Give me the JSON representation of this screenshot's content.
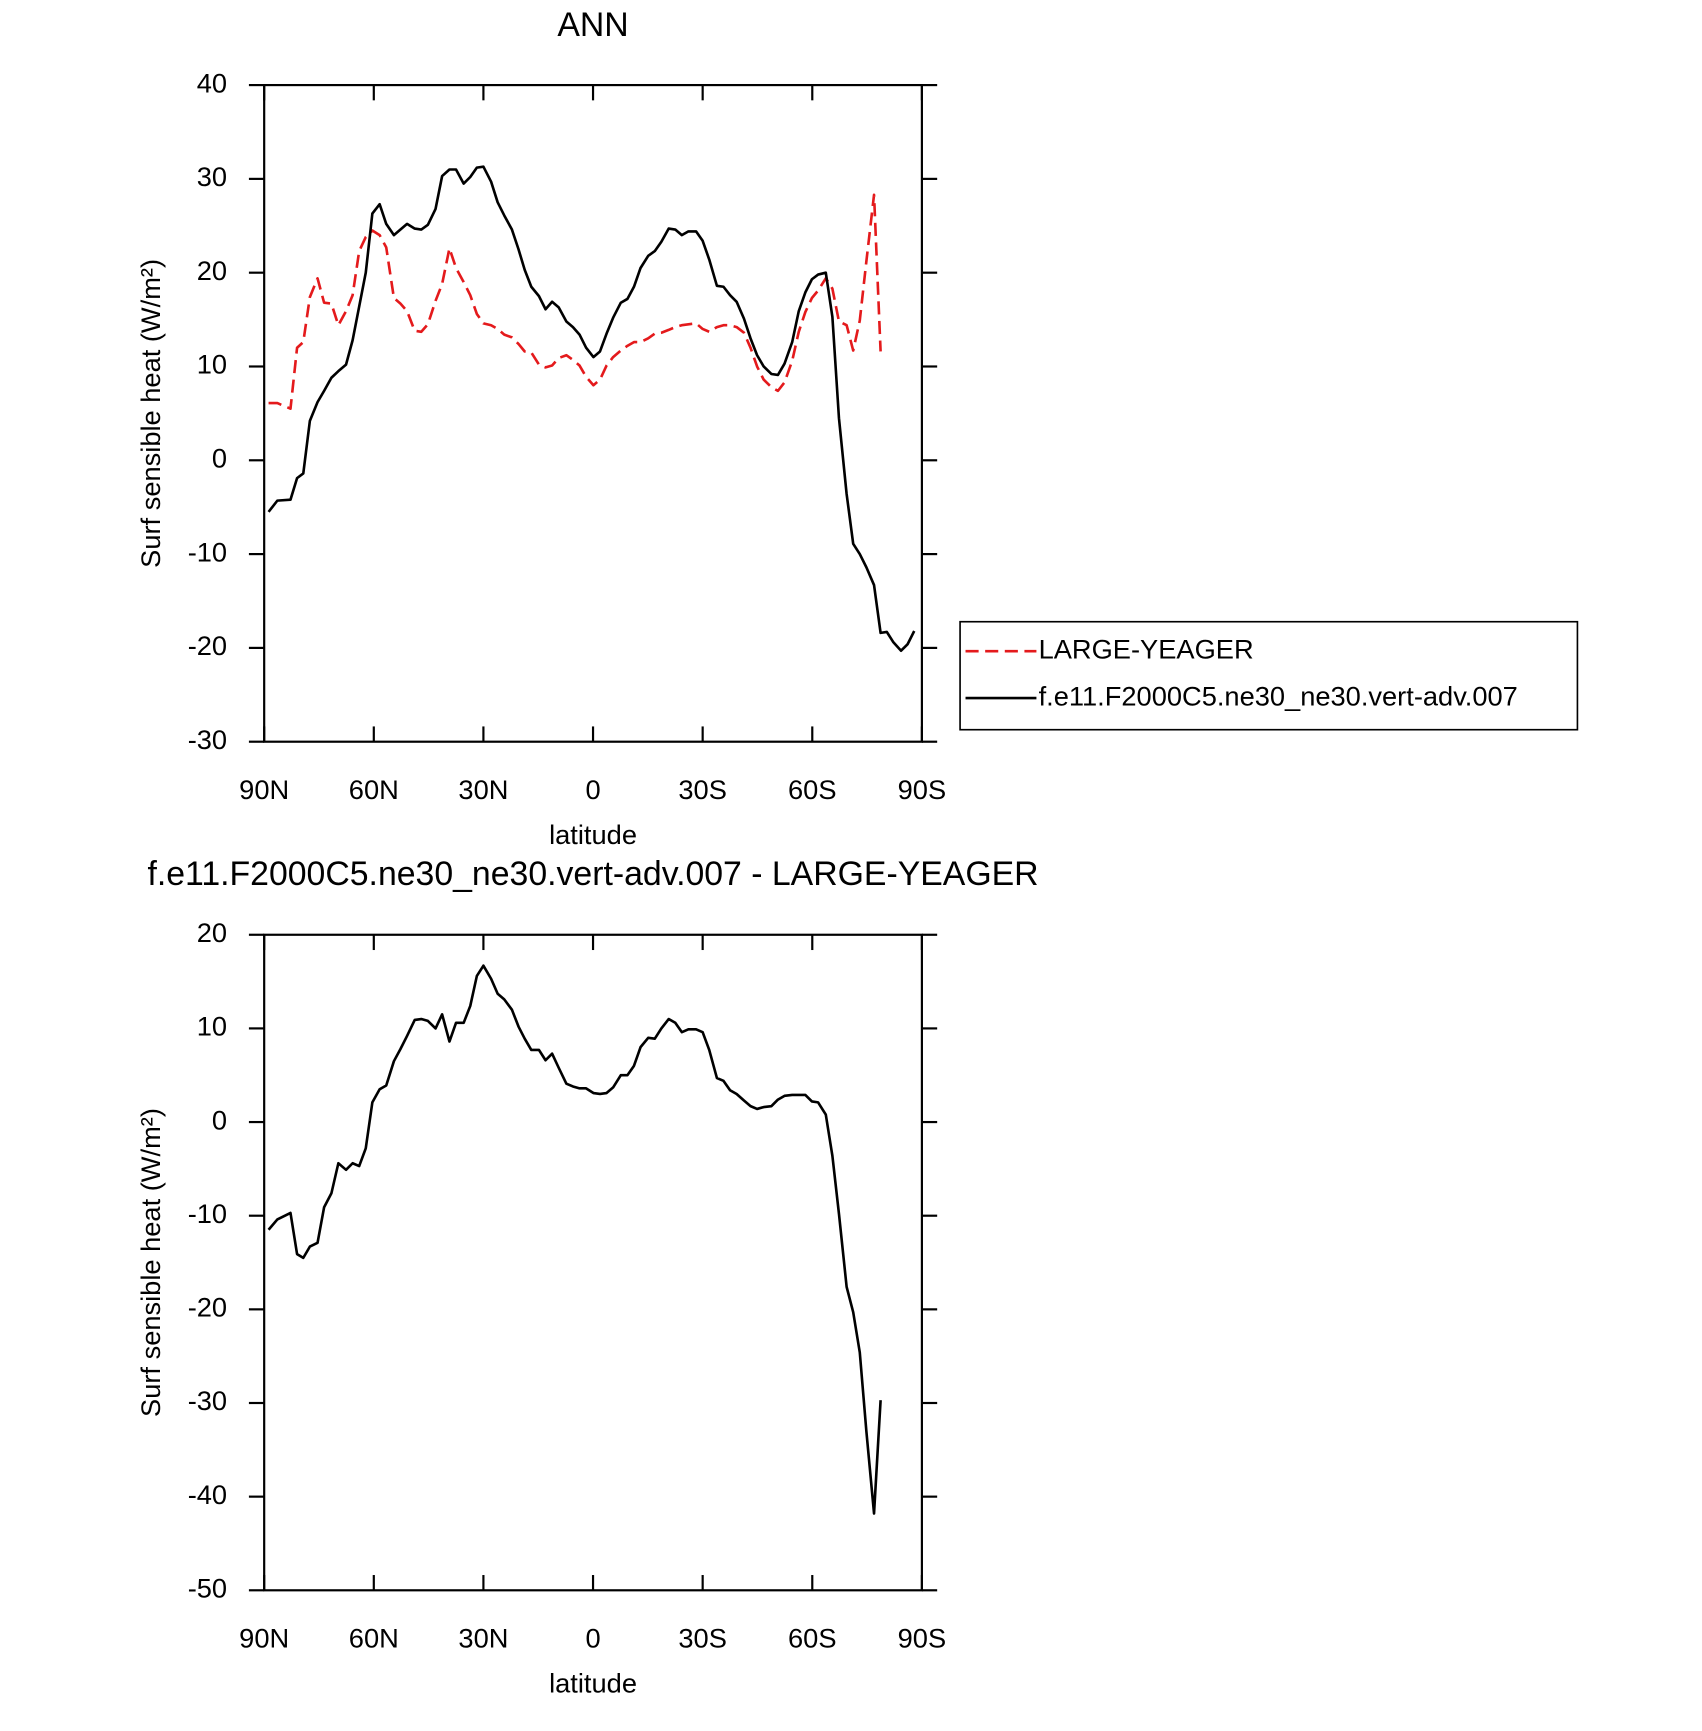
{
  "chart_data": [
    {
      "type": "line",
      "title": "ANN",
      "xlabel": "latitude",
      "ylabel": "Surf sensible heat (W/m²)",
      "x": [
        88.8,
        86.4,
        82.8,
        81.0,
        79.3,
        77.5,
        75.4,
        73.6,
        71.6,
        69.7,
        67.6,
        65.8,
        64.0,
        62.2,
        60.4,
        58.4,
        56.6,
        54.5,
        52.7,
        50.9,
        48.8,
        47.0,
        45.2,
        43.1,
        41.3,
        39.3,
        37.5,
        35.4,
        33.6,
        31.8,
        30.0,
        27.9,
        26.1,
        24.3,
        22.2,
        20.4,
        18.7,
        16.9,
        14.8,
        13.0,
        11.2,
        9.4,
        7.3,
        5.5,
        3.7,
        1.9,
        -0.1,
        -1.9,
        -3.7,
        -5.5,
        -7.6,
        -9.4,
        -11.2,
        -13.0,
        -15.1,
        -16.9,
        -18.7,
        -20.7,
        -22.5,
        -24.3,
        -26.1,
        -28.2,
        -30.0,
        -31.8,
        -33.9,
        -35.7,
        -37.5,
        -39.3,
        -41.3,
        -43.1,
        -44.9,
        -46.7,
        -48.8,
        -50.6,
        -52.4,
        -54.5,
        -56.3,
        -58.1,
        -59.9,
        -61.6,
        -63.7,
        -65.5,
        -67.3,
        -69.4,
        -71.2,
        -73.0,
        -74.8,
        -76.9,
        -78.7,
        -80.4,
        -82.2,
        -84.3,
        -86.1,
        -87.9
      ],
      "series": [
        {
          "name": "LARGE-YEAGER",
          "color": "#e41a1c",
          "dashed": true,
          "values": [
            6.1,
            6.1,
            5.5,
            12,
            12.6,
            17.4,
            19.4,
            16.8,
            16.7,
            14.4,
            15.9,
            17.6,
            22.3,
            23.8,
            24.5,
            24,
            22.7,
            17.3,
            16.7,
            15.9,
            13.8,
            13.7,
            14.5,
            17,
            18.8,
            22.6,
            20.5,
            19,
            17.6,
            15.6,
            14.6,
            14.4,
            14,
            13.4,
            13.1,
            12.4,
            11.6,
            11.5,
            10.2,
            9.9,
            10.1,
            10.9,
            11.2,
            10.7,
            10.1,
            8.9,
            8,
            8.6,
            10.1,
            11,
            11.7,
            12.2,
            12.6,
            12.6,
            13,
            13.5,
            13.6,
            13.9,
            14.2,
            14.4,
            14.5,
            14.6,
            14,
            13.7,
            14.2,
            14.4,
            14.4,
            14.2,
            13.6,
            12,
            10,
            8.6,
            7.8,
            7.4,
            8.3,
            10.6,
            13.7,
            15.8,
            17.3,
            18.1,
            19.4,
            18.3,
            14.8,
            14.4,
            11.7,
            14.9,
            21.2,
            28.3,
            11.6,
            null,
            null,
            null,
            null,
            null
          ]
        },
        {
          "name": "f.e11.F2000C5.ne30_ne30.vert-adv.007",
          "color": "#000000",
          "dashed": false,
          "values": [
            -5.5,
            -4.3,
            -4.2,
            -1.9,
            -1.4,
            4.2,
            6.2,
            7.4,
            8.8,
            9.5,
            10.2,
            12.8,
            16.4,
            20,
            26.3,
            27.3,
            25.2,
            24,
            24.6,
            25.2,
            24.7,
            24.6,
            25.1,
            26.8,
            30.3,
            31,
            31,
            29.5,
            30.2,
            31.2,
            31.3,
            29.7,
            27.5,
            26.1,
            24.6,
            22.5,
            20.3,
            18.5,
            17.5,
            16.1,
            16.9,
            16.3,
            14.8,
            14.2,
            13.4,
            12,
            11,
            11.6,
            13.5,
            15.2,
            16.8,
            17.2,
            18.5,
            20.5,
            21.8,
            22.3,
            23.3,
            24.7,
            24.6,
            24,
            24.4,
            24.4,
            23.4,
            21.4,
            18.6,
            18.5,
            17.6,
            16.9,
            15.1,
            13,
            11.2,
            10,
            9.2,
            9.1,
            10.3,
            12.6,
            15.9,
            17.9,
            19.3,
            19.8,
            20,
            15.3,
            4.5,
            -3.6,
            -8.9,
            -10,
            -11.4,
            -13.3,
            -18.4,
            -18.3,
            -19.4,
            -20.3,
            -19.6,
            -18.2
          ]
        }
      ],
      "xlim": [
        90,
        -90
      ],
      "xticks": [
        {
          "value": 90,
          "label": "90N"
        },
        {
          "value": 60,
          "label": "60N"
        },
        {
          "value": 30,
          "label": "30N"
        },
        0,
        {
          "value": -30,
          "label": "30S"
        },
        {
          "value": -60,
          "label": "60S"
        },
        {
          "value": -90,
          "label": "90S"
        }
      ],
      "ylim": [
        -30,
        40
      ],
      "yticks": [
        -30,
        -20,
        -10,
        0,
        10,
        20,
        30,
        40
      ],
      "legend": "right"
    },
    {
      "type": "line",
      "title": "f.e11.F2000C5.ne30_ne30.vert-adv.007 - LARGE-YEAGER",
      "xlabel": "latitude",
      "ylabel": "Surf sensible heat (W/m²)",
      "x": [
        88.8,
        86.4,
        82.8,
        81.0,
        79.3,
        77.5,
        75.4,
        73.6,
        71.6,
        69.7,
        67.6,
        65.8,
        64.0,
        62.2,
        60.4,
        58.4,
        56.6,
        54.5,
        52.7,
        50.9,
        48.8,
        47.0,
        45.2,
        43.1,
        41.3,
        39.3,
        37.5,
        35.4,
        33.6,
        31.8,
        30.0,
        27.9,
        26.1,
        24.3,
        22.2,
        20.4,
        18.7,
        16.9,
        14.8,
        13.0,
        11.2,
        9.4,
        7.3,
        5.5,
        3.7,
        1.9,
        -0.1,
        -1.9,
        -3.7,
        -5.5,
        -7.6,
        -9.4,
        -11.2,
        -13.0,
        -15.1,
        -16.9,
        -18.7,
        -20.7,
        -22.5,
        -24.3,
        -26.1,
        -28.2,
        -30.0,
        -31.8,
        -33.9,
        -35.7,
        -37.5,
        -39.3,
        -41.3,
        -43.1,
        -44.9,
        -46.7,
        -48.8,
        -50.6,
        -52.4,
        -54.5,
        -56.3,
        -58.1,
        -59.9,
        -61.6,
        -63.7,
        -65.5,
        -67.3,
        -69.4,
        -71.2,
        -73.0,
        -74.8,
        -76.9,
        -78.7,
        -80.4,
        -82.2,
        -84.3,
        -86.1,
        -87.9
      ],
      "series": [
        {
          "color": "#000000",
          "dashed": false,
          "values": [
            -11.5,
            -10.4,
            -9.7,
            -14.1,
            -14.5,
            -13.3,
            -12.9,
            -9.1,
            -7.6,
            -4.4,
            -5.1,
            -4.4,
            -4.7,
            -2.8,
            2.1,
            3.5,
            3.9,
            6.5,
            7.8,
            9.2,
            10.9,
            11,
            10.8,
            10,
            11.5,
            8.6,
            10.6,
            10.6,
            12.4,
            15.6,
            16.7,
            15.3,
            13.7,
            13.1,
            12,
            10.2,
            8.9,
            7.7,
            7.7,
            6.6,
            7.3,
            5.8,
            4.1,
            3.8,
            3.6,
            3.6,
            3.1,
            3.0,
            3.1,
            3.7,
            5,
            5,
            6,
            8,
            9,
            8.9,
            10,
            11,
            10.6,
            9.6,
            9.9,
            9.9,
            9.6,
            7.7,
            4.7,
            4.4,
            3.4,
            3.0,
            2.3,
            1.7,
            1.4,
            1.6,
            1.7,
            2.4,
            2.8,
            2.9,
            2.9,
            2.9,
            2.2,
            2.1,
            0.8,
            -3.6,
            -9.8,
            -17.6,
            -20.3,
            -24.6,
            -33,
            -41.8,
            -29.7,
            null,
            null,
            null,
            null,
            null
          ]
        }
      ],
      "xlim": [
        90,
        -90
      ],
      "xticks": [
        {
          "value": 90,
          "label": "90N"
        },
        {
          "value": 60,
          "label": "60N"
        },
        {
          "value": 30,
          "label": "30N"
        },
        0,
        {
          "value": -30,
          "label": "30S"
        },
        {
          "value": -60,
          "label": "60S"
        },
        {
          "value": -90,
          "label": "90S"
        }
      ],
      "ylim": [
        -50,
        20
      ],
      "yticks": [
        -50,
        -40,
        -30,
        -20,
        -10,
        0,
        10,
        20
      ]
    }
  ]
}
